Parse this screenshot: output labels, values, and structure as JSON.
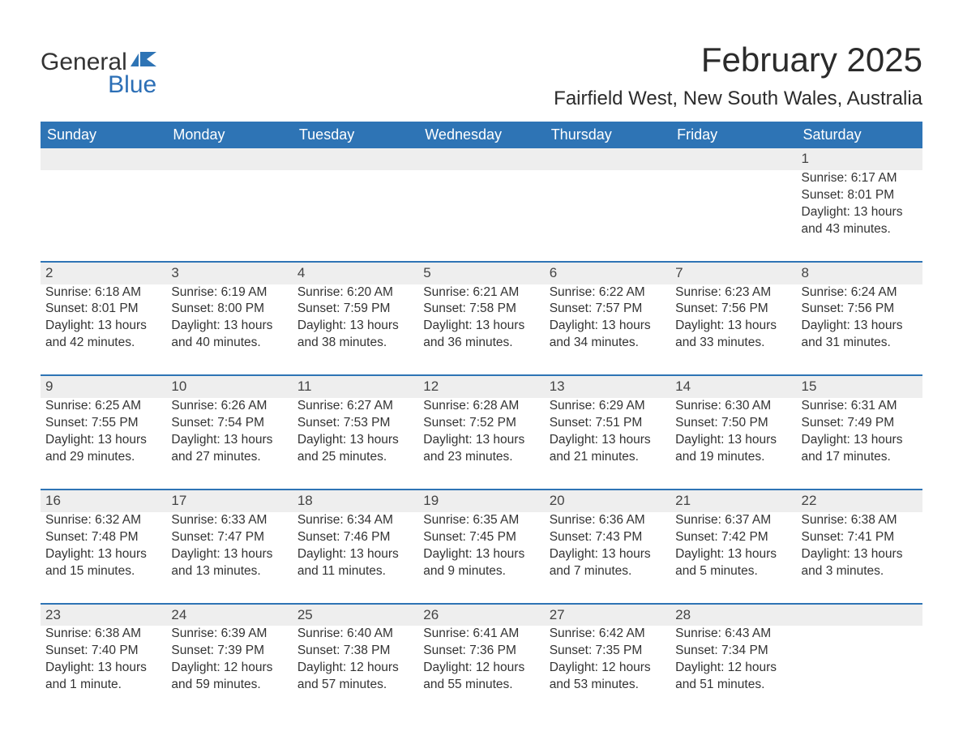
{
  "brand": {
    "word1": "General",
    "word2": "Blue",
    "icon_color": "#2e74b5"
  },
  "title": "February 2025",
  "location": "Fairfield West, New South Wales, Australia",
  "colors": {
    "header_bg": "#2e74b5",
    "header_text": "#ffffff",
    "daynum_bg": "#eeeeee",
    "row_border": "#2e74b5",
    "body_text": "#333333",
    "background": "#ffffff"
  },
  "typography": {
    "title_fontsize": 42,
    "location_fontsize": 24,
    "weekday_fontsize": 18,
    "cell_fontsize": 15.5
  },
  "weekdays": [
    "Sunday",
    "Monday",
    "Tuesday",
    "Wednesday",
    "Thursday",
    "Friday",
    "Saturday"
  ],
  "weeks": [
    [
      null,
      null,
      null,
      null,
      null,
      null,
      {
        "n": "1",
        "sr": "Sunrise: 6:17 AM",
        "ss": "Sunset: 8:01 PM",
        "d1": "Daylight: 13 hours",
        "d2": "and 43 minutes."
      }
    ],
    [
      {
        "n": "2",
        "sr": "Sunrise: 6:18 AM",
        "ss": "Sunset: 8:01 PM",
        "d1": "Daylight: 13 hours",
        "d2": "and 42 minutes."
      },
      {
        "n": "3",
        "sr": "Sunrise: 6:19 AM",
        "ss": "Sunset: 8:00 PM",
        "d1": "Daylight: 13 hours",
        "d2": "and 40 minutes."
      },
      {
        "n": "4",
        "sr": "Sunrise: 6:20 AM",
        "ss": "Sunset: 7:59 PM",
        "d1": "Daylight: 13 hours",
        "d2": "and 38 minutes."
      },
      {
        "n": "5",
        "sr": "Sunrise: 6:21 AM",
        "ss": "Sunset: 7:58 PM",
        "d1": "Daylight: 13 hours",
        "d2": "and 36 minutes."
      },
      {
        "n": "6",
        "sr": "Sunrise: 6:22 AM",
        "ss": "Sunset: 7:57 PM",
        "d1": "Daylight: 13 hours",
        "d2": "and 34 minutes."
      },
      {
        "n": "7",
        "sr": "Sunrise: 6:23 AM",
        "ss": "Sunset: 7:56 PM",
        "d1": "Daylight: 13 hours",
        "d2": "and 33 minutes."
      },
      {
        "n": "8",
        "sr": "Sunrise: 6:24 AM",
        "ss": "Sunset: 7:56 PM",
        "d1": "Daylight: 13 hours",
        "d2": "and 31 minutes."
      }
    ],
    [
      {
        "n": "9",
        "sr": "Sunrise: 6:25 AM",
        "ss": "Sunset: 7:55 PM",
        "d1": "Daylight: 13 hours",
        "d2": "and 29 minutes."
      },
      {
        "n": "10",
        "sr": "Sunrise: 6:26 AM",
        "ss": "Sunset: 7:54 PM",
        "d1": "Daylight: 13 hours",
        "d2": "and 27 minutes."
      },
      {
        "n": "11",
        "sr": "Sunrise: 6:27 AM",
        "ss": "Sunset: 7:53 PM",
        "d1": "Daylight: 13 hours",
        "d2": "and 25 minutes."
      },
      {
        "n": "12",
        "sr": "Sunrise: 6:28 AM",
        "ss": "Sunset: 7:52 PM",
        "d1": "Daylight: 13 hours",
        "d2": "and 23 minutes."
      },
      {
        "n": "13",
        "sr": "Sunrise: 6:29 AM",
        "ss": "Sunset: 7:51 PM",
        "d1": "Daylight: 13 hours",
        "d2": "and 21 minutes."
      },
      {
        "n": "14",
        "sr": "Sunrise: 6:30 AM",
        "ss": "Sunset: 7:50 PM",
        "d1": "Daylight: 13 hours",
        "d2": "and 19 minutes."
      },
      {
        "n": "15",
        "sr": "Sunrise: 6:31 AM",
        "ss": "Sunset: 7:49 PM",
        "d1": "Daylight: 13 hours",
        "d2": "and 17 minutes."
      }
    ],
    [
      {
        "n": "16",
        "sr": "Sunrise: 6:32 AM",
        "ss": "Sunset: 7:48 PM",
        "d1": "Daylight: 13 hours",
        "d2": "and 15 minutes."
      },
      {
        "n": "17",
        "sr": "Sunrise: 6:33 AM",
        "ss": "Sunset: 7:47 PM",
        "d1": "Daylight: 13 hours",
        "d2": "and 13 minutes."
      },
      {
        "n": "18",
        "sr": "Sunrise: 6:34 AM",
        "ss": "Sunset: 7:46 PM",
        "d1": "Daylight: 13 hours",
        "d2": "and 11 minutes."
      },
      {
        "n": "19",
        "sr": "Sunrise: 6:35 AM",
        "ss": "Sunset: 7:45 PM",
        "d1": "Daylight: 13 hours",
        "d2": "and 9 minutes."
      },
      {
        "n": "20",
        "sr": "Sunrise: 6:36 AM",
        "ss": "Sunset: 7:43 PM",
        "d1": "Daylight: 13 hours",
        "d2": "and 7 minutes."
      },
      {
        "n": "21",
        "sr": "Sunrise: 6:37 AM",
        "ss": "Sunset: 7:42 PM",
        "d1": "Daylight: 13 hours",
        "d2": "and 5 minutes."
      },
      {
        "n": "22",
        "sr": "Sunrise: 6:38 AM",
        "ss": "Sunset: 7:41 PM",
        "d1": "Daylight: 13 hours",
        "d2": "and 3 minutes."
      }
    ],
    [
      {
        "n": "23",
        "sr": "Sunrise: 6:38 AM",
        "ss": "Sunset: 7:40 PM",
        "d1": "Daylight: 13 hours",
        "d2": "and 1 minute."
      },
      {
        "n": "24",
        "sr": "Sunrise: 6:39 AM",
        "ss": "Sunset: 7:39 PM",
        "d1": "Daylight: 12 hours",
        "d2": "and 59 minutes."
      },
      {
        "n": "25",
        "sr": "Sunrise: 6:40 AM",
        "ss": "Sunset: 7:38 PM",
        "d1": "Daylight: 12 hours",
        "d2": "and 57 minutes."
      },
      {
        "n": "26",
        "sr": "Sunrise: 6:41 AM",
        "ss": "Sunset: 7:36 PM",
        "d1": "Daylight: 12 hours",
        "d2": "and 55 minutes."
      },
      {
        "n": "27",
        "sr": "Sunrise: 6:42 AM",
        "ss": "Sunset: 7:35 PM",
        "d1": "Daylight: 12 hours",
        "d2": "and 53 minutes."
      },
      {
        "n": "28",
        "sr": "Sunrise: 6:43 AM",
        "ss": "Sunset: 7:34 PM",
        "d1": "Daylight: 12 hours",
        "d2": "and 51 minutes."
      },
      null
    ]
  ]
}
